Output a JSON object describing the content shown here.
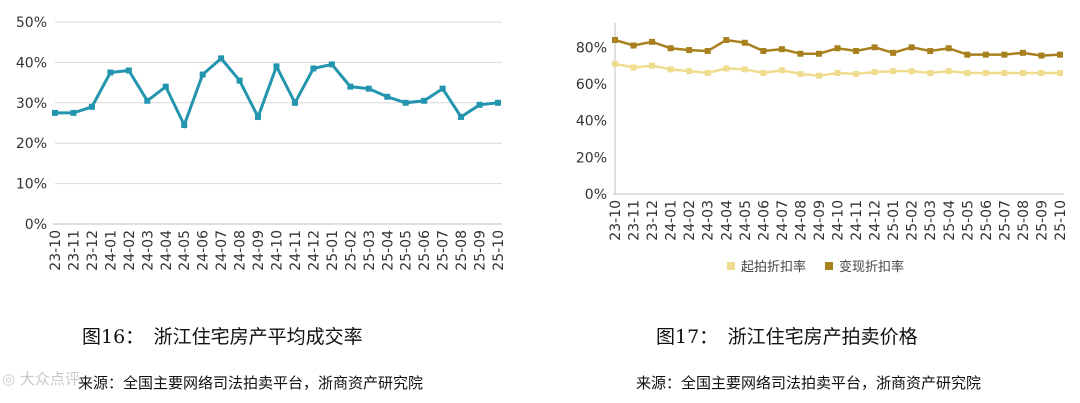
{
  "chart_data": [
    {
      "type": "line",
      "x": [
        "23-10",
        "23-11",
        "23-12",
        "24-01",
        "24-02",
        "24-03",
        "24-04",
        "24-05",
        "24-06",
        "24-07",
        "24-08",
        "24-09",
        "24-10",
        "24-11",
        "24-12",
        "25-01",
        "25-02",
        "25-03",
        "25-04",
        "25-05",
        "25-06",
        "25-07",
        "25-08",
        "25-09",
        "25-10"
      ],
      "series": [
        {
          "values": [
            27.5,
            27.5,
            29,
            37.5,
            38,
            30.5,
            34,
            24.5,
            37,
            41,
            35.5,
            26.5,
            39,
            30,
            38.5,
            39.5,
            34,
            33.5,
            31.5,
            30,
            30.5,
            33.5,
            26.5,
            29.5,
            30
          ],
          "color": "#2395ae"
        }
      ],
      "yticks": [
        "0%",
        "10%",
        "20%",
        "30%",
        "40%",
        "50%"
      ],
      "ylim": [
        0,
        50
      ],
      "grid": true
    },
    {
      "type": "line",
      "x": [
        "23-10",
        "23-11",
        "23-12",
        "24-01",
        "24-02",
        "24-03",
        "24-04",
        "24-05",
        "24-06",
        "24-07",
        "24-08",
        "24-09",
        "24-10",
        "24-11",
        "24-12",
        "25-01",
        "25-02",
        "25-03",
        "25-04",
        "25-05",
        "25-06",
        "25-07",
        "25-08",
        "25-09",
        "25-10"
      ],
      "series": [
        {
          "name": "起拍折扣率",
          "values": [
            71,
            69,
            70,
            68,
            67,
            66,
            68.5,
            68,
            66,
            67.5,
            65.5,
            64.5,
            66,
            65.5,
            66.5,
            67,
            67,
            66,
            67,
            66,
            66,
            66,
            66,
            66,
            66
          ],
          "color": "#f0dc8e"
        },
        {
          "name": "变现折扣率",
          "values": [
            84,
            81,
            83,
            79.5,
            78.5,
            78,
            84,
            82.5,
            78,
            79,
            76.5,
            76.5,
            79.5,
            78,
            80,
            77,
            80,
            78,
            79.5,
            76,
            76,
            76,
            77,
            75.5,
            76
          ],
          "color": "#a8811e"
        }
      ],
      "yticks": [
        "0%",
        "20%",
        "40%",
        "60%",
        "80%"
      ],
      "ylim": [
        0,
        90
      ],
      "grid": false,
      "legend_position": "bottom"
    }
  ],
  "captions": {
    "left": "图16：　浙江住宅房产平均成交率",
    "right": "图17：　浙江住宅房产拍卖价格"
  },
  "sources": {
    "left": "来源：全国主要网络司法拍卖平台，浙商资产研究院",
    "right": "来源：全国主要网络司法拍卖平台，浙商资产研究院"
  },
  "watermark": "大众点评"
}
